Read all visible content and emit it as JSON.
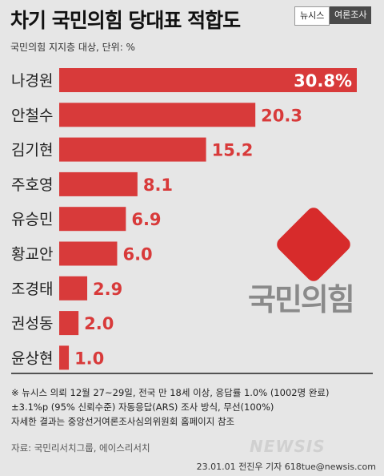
{
  "header": {
    "title": "차기 국민의힘 당대표 적합도",
    "brand": "뉴시스",
    "kind": "여론조사",
    "subtitle": "국민의힘 지지층 대상,  단위: %"
  },
  "chart_data": {
    "type": "bar",
    "orientation": "horizontal",
    "categories": [
      "나경원",
      "안철수",
      "김기현",
      "주호영",
      "유승민",
      "황교안",
      "조경태",
      "권성동",
      "윤상현"
    ],
    "values": [
      30.8,
      20.3,
      15.2,
      8.1,
      6.9,
      6.0,
      2.9,
      2.0,
      1.0
    ],
    "value_labels": [
      "30.8%",
      "20.3",
      "15.2",
      "8.1",
      "6.9",
      "6.0",
      "2.9",
      "2.0",
      "1.0"
    ],
    "unit": "%",
    "bar_color": "#d83a3a",
    "label_color": "#d83a3a",
    "first_label_color": "#ffffff",
    "legend": "none",
    "grid": false
  },
  "notes": [
    "※ 뉴시스 의뢰 12월 27~29일, 전국 만 18세 이상, 응답률 1.0% (1002명 완료)",
    "±3.1%p (95% 신뢰수준) 자동응답(ARS) 조사 방식, 무선(100%)",
    "자세한 결과는 중앙선거여론조사심의위원회 홈페이지 참조"
  ],
  "source": "자료: 국민리서치그룹, 에이스리서치",
  "credit": "23.01.01 전진우 기자 618tue@newsis.com",
  "logo": {
    "text": "국민의힘",
    "color": "#d72b2b"
  },
  "watermark": "NEWSIS"
}
